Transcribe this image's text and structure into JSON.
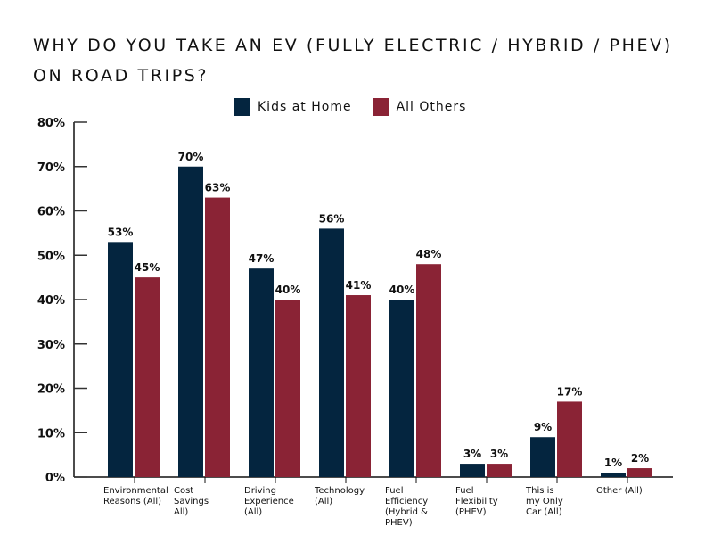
{
  "chart_data": {
    "type": "bar",
    "title": "WHY DO YOU TAKE AN EV (FULLY ELECTRIC / HYBRID / PHEV) ON ROAD TRIPS?",
    "categories": [
      "Environmental\nReasons (All)",
      "Cost\nSavings\nAll)",
      "Driving\nExperience\n(All)",
      "Technology\n(All)",
      "Fuel\nEfficiency\n(Hybrid &\nPHEV)",
      "Fuel\nFlexibility\n(PHEV)",
      "This is\nmy Only\nCar (All)",
      "Other (All)"
    ],
    "series": [
      {
        "name": "Kids at Home",
        "color": "#04253f",
        "values": [
          53,
          70,
          47,
          56,
          40,
          3,
          9,
          1
        ]
      },
      {
        "name": "All Others",
        "color": "#8a2335",
        "values": [
          45,
          63,
          40,
          41,
          48,
          3,
          17,
          2
        ]
      }
    ],
    "value_labels": {
      "Kids at Home": [
        "53%",
        "70%",
        "47%",
        "56%",
        "40%",
        "3%",
        "9%",
        "1%"
      ],
      "All Others": [
        "45%",
        "63%",
        "40%",
        "41%",
        "48%",
        "3%",
        "17%",
        "2%"
      ]
    },
    "ylim": [
      0,
      80
    ],
    "yticks": [
      "0%",
      "10%",
      "20%",
      "30%",
      "40%",
      "50%",
      "60%",
      "70%",
      "80%"
    ],
    "xlabel": "",
    "ylabel": "",
    "grid": false,
    "legend_position": "top-center"
  }
}
